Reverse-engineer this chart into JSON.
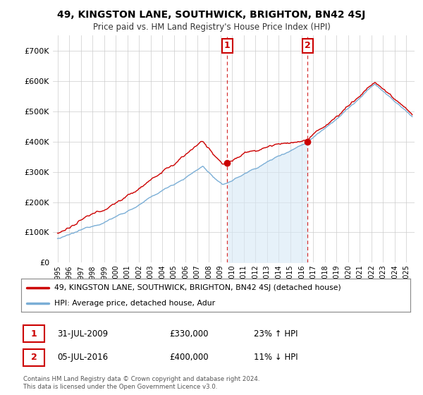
{
  "title": "49, KINGSTON LANE, SOUTHWICK, BRIGHTON, BN42 4SJ",
  "subtitle": "Price paid vs. HM Land Registry's House Price Index (HPI)",
  "property_label": "49, KINGSTON LANE, SOUTHWICK, BRIGHTON, BN42 4SJ (detached house)",
  "hpi_label": "HPI: Average price, detached house, Adur",
  "property_color": "#cc0000",
  "hpi_color": "#7aaed6",
  "hpi_fill_color": "#d6e8f5",
  "background_color": "#ffffff",
  "grid_color": "#cccccc",
  "sale1_year": 2009.58,
  "sale1_price": 330000,
  "sale1_date": "31-JUL-2009",
  "sale1_change": "23% ↑ HPI",
  "sale2_year": 2016.5,
  "sale2_price": 400000,
  "sale2_date": "05-JUL-2016",
  "sale2_change": "11% ↓ HPI",
  "ylim": [
    0,
    750000
  ],
  "yticks": [
    0,
    100000,
    200000,
    300000,
    400000,
    500000,
    600000,
    700000
  ],
  "ytick_labels": [
    "£0",
    "£100K",
    "£200K",
    "£300K",
    "£400K",
    "£500K",
    "£600K",
    "£700K"
  ],
  "footer": "Contains HM Land Registry data © Crown copyright and database right 2024.\nThis data is licensed under the Open Government Licence v3.0.",
  "xstart": 1995.0,
  "xend": 2025.5
}
